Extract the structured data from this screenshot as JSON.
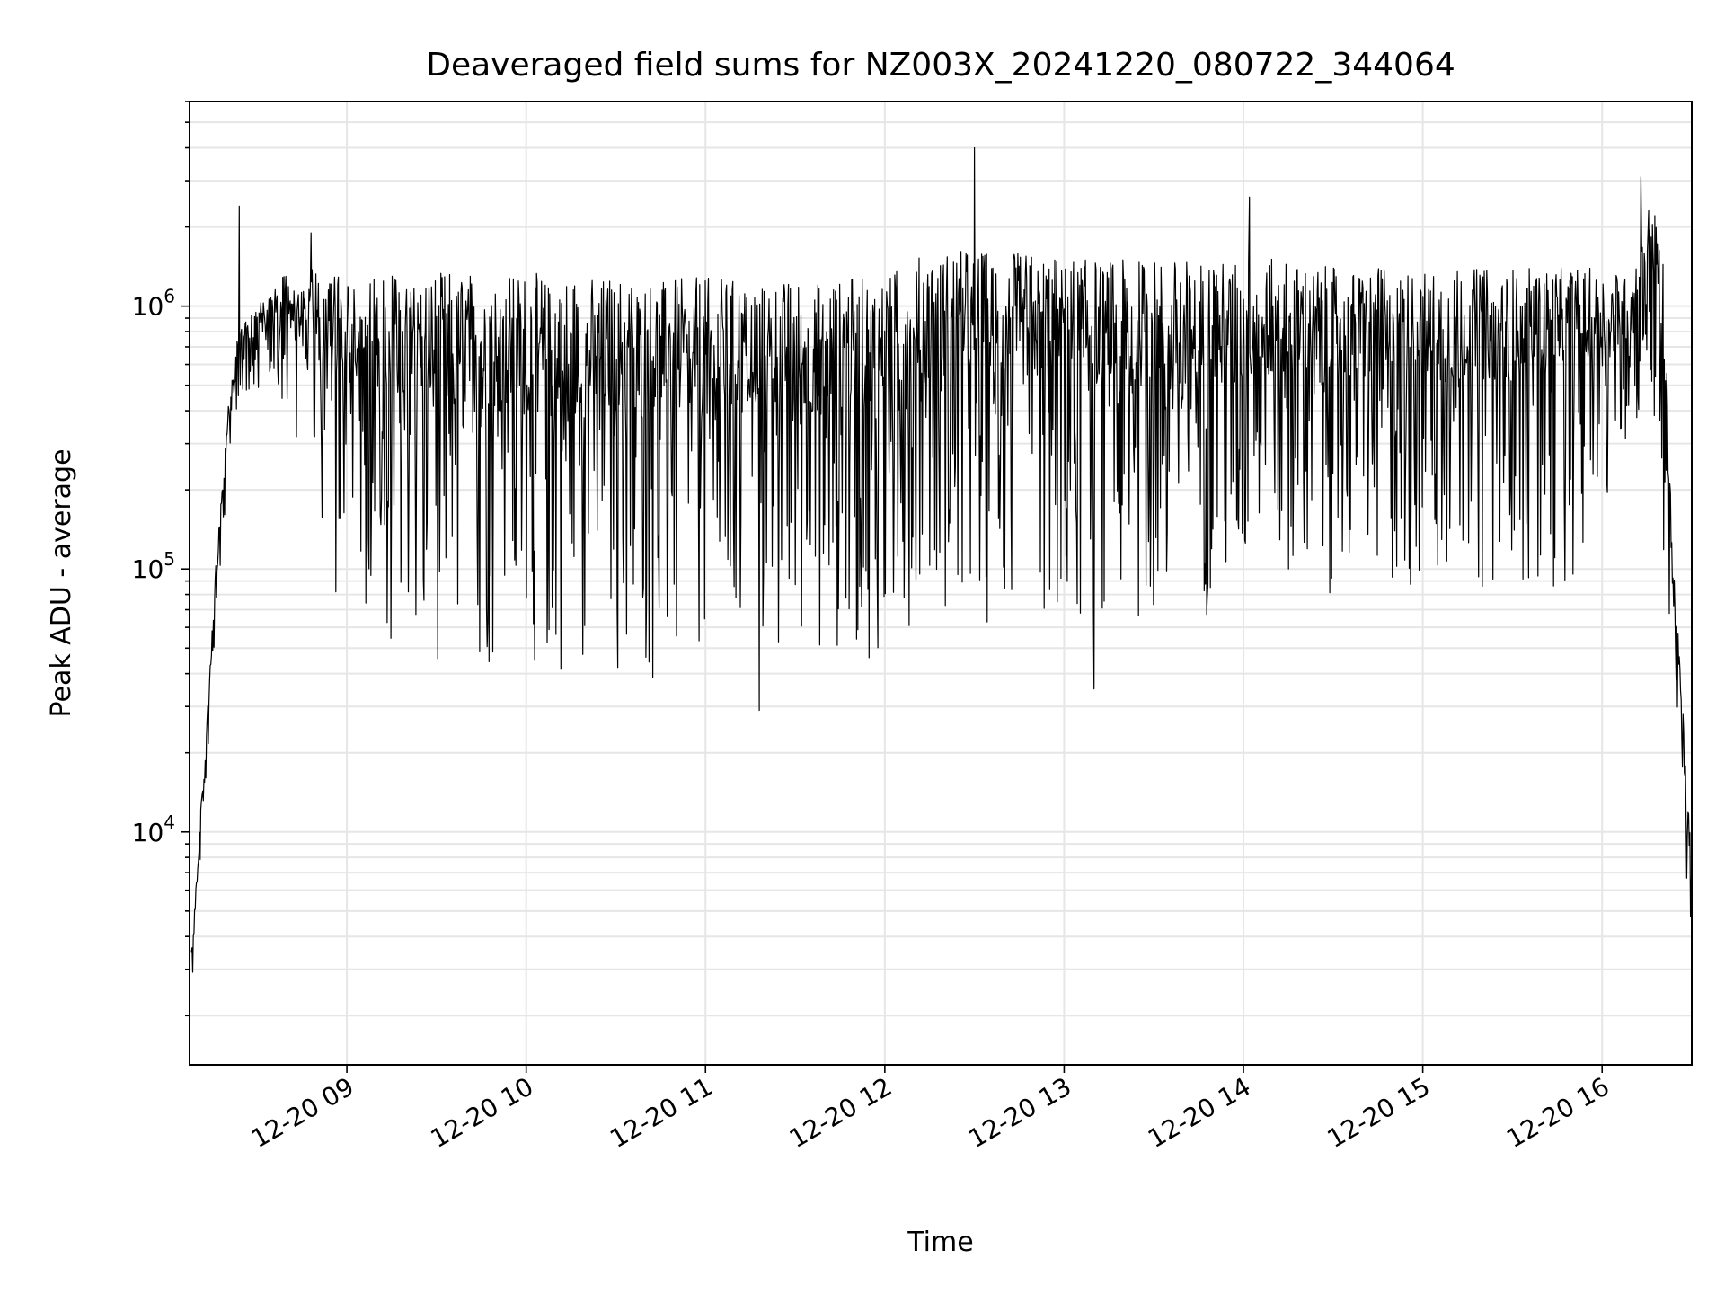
{
  "chart_data": {
    "type": "line",
    "title": "Deaveraged field sums for NZ003X_20241220_080722_344064",
    "xlabel": "Time",
    "ylabel": "Peak ADU - average",
    "yscale": "log",
    "grid": true,
    "x_range": [
      "2024-12-20 08:07:22",
      "2024-12-20 16:30"
    ],
    "ylim": [
      1300,
      6000000
    ],
    "x_ticks": [
      {
        "value": "2024-12-20 09:00",
        "label": "12-20 09"
      },
      {
        "value": "2024-12-20 10:00",
        "label": "12-20 10"
      },
      {
        "value": "2024-12-20 11:00",
        "label": "12-20 11"
      },
      {
        "value": "2024-12-20 12:00",
        "label": "12-20 12"
      },
      {
        "value": "2024-12-20 13:00",
        "label": "12-20 13"
      },
      {
        "value": "2024-12-20 14:00",
        "label": "12-20 14"
      },
      {
        "value": "2024-12-20 15:00",
        "label": "12-20 15"
      },
      {
        "value": "2024-12-20 16:00",
        "label": "12-20 16"
      }
    ],
    "y_ticks": [
      {
        "value": 10000,
        "base": "10",
        "exp": "4"
      },
      {
        "value": 100000,
        "base": "10",
        "exp": "5"
      },
      {
        "value": 1000000,
        "base": "10",
        "exp": "6"
      }
    ],
    "line_color": "#000000",
    "grid_color": "#e6e6e6",
    "series": [
      {
        "x": [
          "2024-12-20 08:08",
          "2024-12-20 08:10",
          "2024-12-20 08:13",
          "2024-12-20 08:16",
          "2024-12-20 08:20",
          "2024-12-20 08:24",
          "2024-12-20 08:28",
          "2024-12-20 08:33",
          "2024-12-20 08:38",
          "2024-12-20 08:44",
          "2024-12-20 08:50",
          "2024-12-20 08:56",
          "2024-12-20 09:02",
          "2024-12-20 09:10",
          "2024-12-20 09:20",
          "2024-12-20 09:30",
          "2024-12-20 09:45",
          "2024-12-20 10:00",
          "2024-12-20 10:15",
          "2024-12-20 10:30",
          "2024-12-20 10:45",
          "2024-12-20 11:00",
          "2024-12-20 11:15",
          "2024-12-20 11:30",
          "2024-12-20 11:45",
          "2024-12-20 12:00",
          "2024-12-20 12:12",
          "2024-12-20 12:30",
          "2024-12-20 12:45",
          "2024-12-20 13:00",
          "2024-12-20 13:15",
          "2024-12-20 13:30",
          "2024-12-20 13:45",
          "2024-12-20 14:00",
          "2024-12-20 14:15",
          "2024-12-20 14:30",
          "2024-12-20 14:45",
          "2024-12-20 15:00",
          "2024-12-20 15:15",
          "2024-12-20 15:30",
          "2024-12-20 15:45",
          "2024-12-20 16:00",
          "2024-12-20 16:10",
          "2024-12-20 16:16",
          "2024-12-20 16:20",
          "2024-12-20 16:24",
          "2024-12-20 16:27",
          "2024-12-20 16:30"
        ],
        "low": [
          2200,
          5000,
          14000,
          50000,
          200000,
          450000,
          480000,
          450000,
          300000,
          200000,
          150000,
          70000,
          55000,
          45000,
          45000,
          42000,
          40000,
          40000,
          38000,
          36000,
          34000,
          35000,
          40000,
          45000,
          45000,
          45000,
          70000,
          60000,
          55000,
          60000,
          60000,
          60000,
          65000,
          70000,
          75000,
          80000,
          80000,
          80000,
          80000,
          80000,
          80000,
          120000,
          300000,
          500000,
          100000,
          50000,
          10000,
          2800
        ],
        "high": [
          3500,
          8000,
          25000,
          100000,
          400000,
          850000,
          950000,
          1100000,
          1300000,
          1400000,
          1400000,
          1300000,
          1400000,
          1300000,
          1300000,
          1350000,
          1350000,
          1350000,
          1300000,
          1300000,
          1250000,
          1300000,
          1250000,
          1250000,
          1300000,
          1300000,
          1600000,
          1650000,
          1600000,
          1550000,
          1500000,
          1500000,
          1500000,
          1550000,
          1500000,
          1400000,
          1400000,
          1350000,
          1400000,
          1400000,
          1400000,
          1400000,
          1300000,
          2500000,
          2000000,
          100000,
          30000,
          8000
        ],
        "spikes": [
          {
            "x": "2024-12-20 08:24",
            "y": 2400000
          },
          {
            "x": "2024-12-20 08:48",
            "y": 1900000
          },
          {
            "x": "2024-12-20 12:30",
            "y": 4000000
          },
          {
            "x": "2024-12-20 14:02",
            "y": 2600000
          },
          {
            "x": "2024-12-20 16:13",
            "y": 3100000
          },
          {
            "x": "2024-12-20 11:18",
            "y": 29000
          },
          {
            "x": "2024-12-20 13:10",
            "y": 35000
          }
        ]
      }
    ]
  }
}
